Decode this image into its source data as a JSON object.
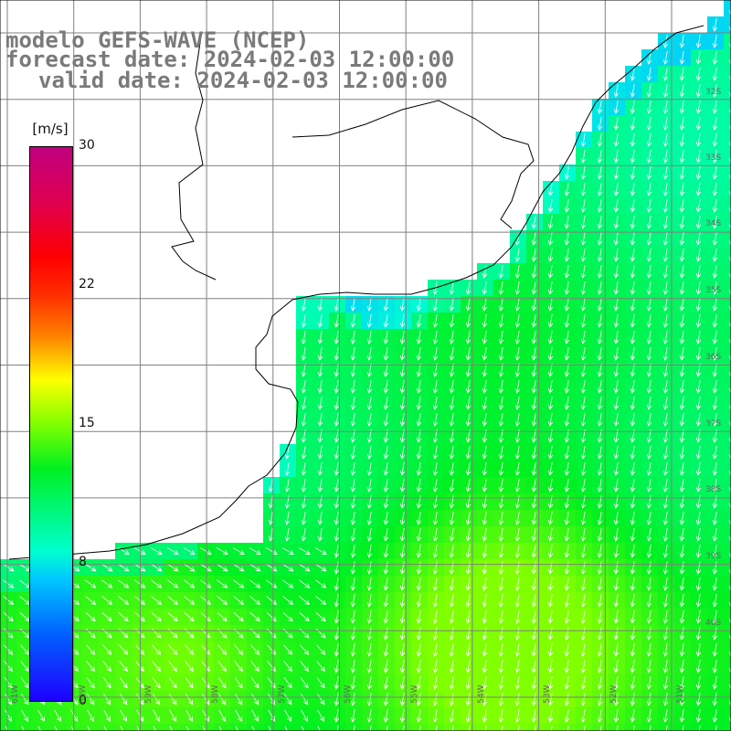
{
  "title": {
    "line1": "modelo GEFS-WAVE (NCEP)",
    "line2": "forecast date: 2024-02-03 12:00:00",
    "line3": "valid date: 2024-02-03 12:00:00"
  },
  "colorbar": {
    "units": "[m/s]",
    "ticks": [
      "30",
      "22",
      "15",
      "8",
      "0"
    ],
    "tick_values": [
      30,
      22,
      15,
      8,
      0
    ],
    "min": 0,
    "max": 30
  },
  "grid": {
    "lat_labels": [
      "32S",
      "33S",
      "34S",
      "35S",
      "36S",
      "37S",
      "38S",
      "39S",
      "40S"
    ],
    "lon_labels": [
      "61W",
      "60W",
      "59W",
      "58W",
      "57W",
      "56W",
      "55W",
      "54W",
      "53W",
      "52W",
      "51W"
    ]
  },
  "colors": {
    "land": "#ffffff",
    "grid": "#808080",
    "coast": "#000000",
    "arrows": "#ffffff",
    "title": "#7a7a7a"
  }
}
